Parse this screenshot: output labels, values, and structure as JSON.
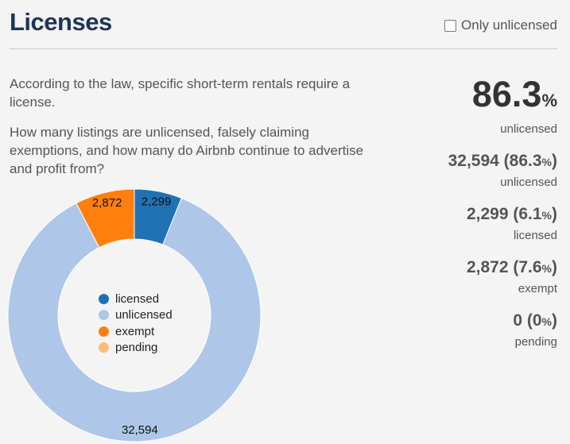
{
  "header": {
    "title": "Licenses",
    "toggle_label": "Only unlicensed"
  },
  "description": {
    "line1": "According to the law, specific short-term rentals require a license.",
    "line2": "How many listings are unlicensed, falsely claiming exemptions, and how many do Airbnb continue to advertise and profit from?"
  },
  "headline": {
    "value": "86.3",
    "unit": "%",
    "label": "unlicensed"
  },
  "stats": [
    {
      "count": "32,594",
      "pct": "86.3",
      "label": "unlicensed"
    },
    {
      "count": "2,299",
      "pct": "6.1",
      "label": "licensed"
    },
    {
      "count": "2,872",
      "pct": "7.6",
      "label": "exempt"
    },
    {
      "count": "0",
      "pct": "0",
      "label": "pending"
    }
  ],
  "colors": {
    "licensed": "#2171b5",
    "unlicensed": "#aec7e8",
    "exempt": "#ff7f0e",
    "pending": "#ffbb78"
  },
  "chart_data": {
    "type": "pie",
    "donut": true,
    "start": "top",
    "direction": "clockwise",
    "slices": [
      {
        "name": "licensed",
        "value": 2299,
        "label": "2,299",
        "color": "#2171b5"
      },
      {
        "name": "unlicensed",
        "value": 32594,
        "label": "32,594",
        "color": "#aec7e8"
      },
      {
        "name": "exempt",
        "value": 2872,
        "label": "2,872",
        "color": "#ff7f0e"
      },
      {
        "name": "pending",
        "value": 0,
        "label": "",
        "color": "#ffbb78"
      }
    ],
    "legend": [
      "licensed",
      "unlicensed",
      "exempt",
      "pending"
    ],
    "legend_position": "center"
  }
}
